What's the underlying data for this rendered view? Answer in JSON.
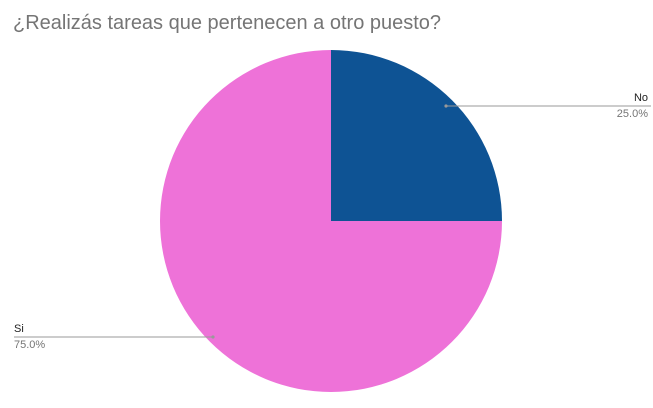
{
  "chart_data": {
    "type": "pie",
    "title": "¿Realizás tareas que pertenecen a otro puesto?",
    "slices": [
      {
        "label": "No",
        "value": 25.0,
        "percent_label": "25.0%",
        "color": "#0e5394"
      },
      {
        "label": "Si",
        "value": 75.0,
        "percent_label": "75.0%",
        "color": "#ee72d8"
      }
    ],
    "legend": "none",
    "leader_line_color": "#999999"
  }
}
